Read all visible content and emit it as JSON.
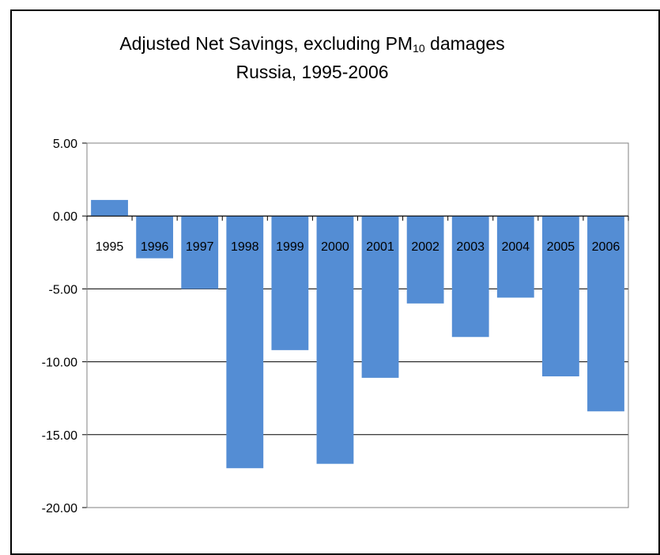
{
  "chart_data": {
    "type": "bar",
    "title_main": "Adjusted Net Savings, excluding PM",
    "title_sub": "10",
    "title_tail": " damages",
    "subtitle": "Russia, 1995-2006",
    "xlabel": "",
    "ylabel": "",
    "categories": [
      "1995",
      "1996",
      "1997",
      "1998",
      "1999",
      "2000",
      "2001",
      "2002",
      "2003",
      "2004",
      "2005",
      "2006"
    ],
    "values": [
      1.1,
      -2.9,
      -5.0,
      -17.3,
      -9.2,
      -17.0,
      -11.1,
      -6.0,
      -8.3,
      -5.6,
      -11.0,
      -13.4
    ],
    "ylim": [
      -20,
      5
    ],
    "yticks": [
      5,
      0,
      -5,
      -10,
      -15,
      -20
    ],
    "ytick_labels": [
      "5.00",
      "0.00",
      "-5.00",
      "-10.00",
      "-15.00",
      "-20.00"
    ],
    "grid": true,
    "colors": {
      "bar": "#548DD4",
      "grid": "#000000"
    }
  }
}
